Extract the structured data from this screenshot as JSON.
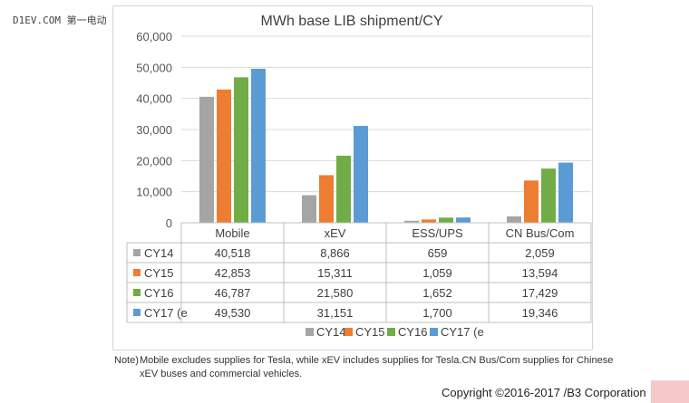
{
  "watermark": "D1EV.COM 第一电动",
  "colors": {
    "CY14": "#a5a5a5",
    "CY15": "#ed7d31",
    "CY16": "#70ad47",
    "CY17": "#5b9bd5"
  },
  "chart_data": {
    "type": "bar",
    "title": "MWh base LIB shipment/CY",
    "categories": [
      "Mobile",
      "xEV",
      "ESS/UPS",
      "CN Bus/Com"
    ],
    "ylim": [
      0,
      60000
    ],
    "yticks": [
      "0",
      "10,000",
      "20,000",
      "30,000",
      "40,000",
      "50,000",
      "60,000"
    ],
    "series": [
      {
        "name": "CY14",
        "table_label": "CY14",
        "values": [
          40518,
          8866,
          659,
          2059
        ],
        "display": [
          "40,518",
          "8,866",
          "659",
          "2,059"
        ]
      },
      {
        "name": "CY15",
        "table_label": "CY15",
        "values": [
          42853,
          15311,
          1059,
          13594
        ],
        "display": [
          "42,853",
          "15,311",
          "1,059",
          "13,594"
        ]
      },
      {
        "name": "CY16",
        "table_label": "CY16",
        "values": [
          46787,
          21580,
          1652,
          17429
        ],
        "display": [
          "46,787",
          "21,580",
          "1,652",
          "17,429"
        ]
      },
      {
        "name": "CY17 (e",
        "table_label": "CY17 (e",
        "values": [
          49530,
          31151,
          1700,
          19346
        ],
        "display": [
          "49,530",
          "31,151",
          "1,700",
          "19,346"
        ]
      }
    ],
    "legend": [
      "CY14",
      "CY15",
      "CY16",
      "CY17 (e"
    ]
  },
  "note": {
    "label": "Note)",
    "text": "Mobile excludes supplies for Tesla, while xEV includes supplies for Tesla.CN Bus/Com supplies for Chinese xEV buses and commercial vehicles."
  },
  "copyright": "Copyright ©2016-2017 /B3 Corporation"
}
